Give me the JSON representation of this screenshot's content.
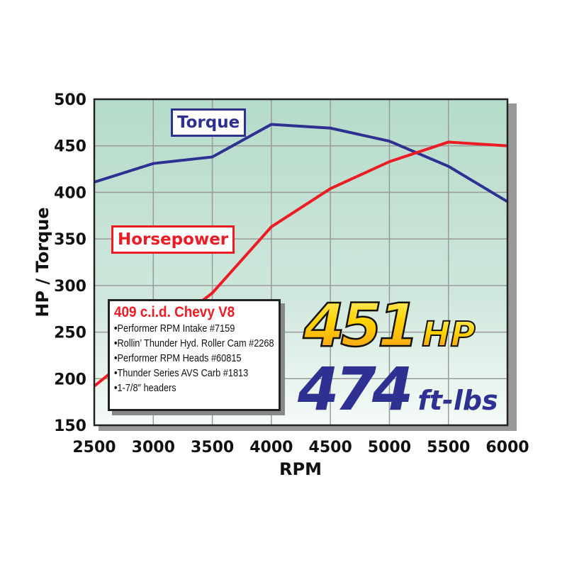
{
  "chart_data": {
    "type": "line",
    "xlabel": "RPM",
    "ylabel": "HP / Torque",
    "xlim": [
      2500,
      6000
    ],
    "ylim": [
      150,
      500
    ],
    "xticks": [
      2500,
      3000,
      3500,
      4000,
      4500,
      5000,
      5500,
      6000
    ],
    "yticks": [
      150,
      200,
      250,
      300,
      350,
      400,
      450,
      500
    ],
    "grid": true,
    "x": [
      2500,
      3000,
      3500,
      4000,
      4500,
      5000,
      5500,
      6000
    ],
    "series": [
      {
        "name": "Torque",
        "color": "#2e3192",
        "values": [
          411,
          431,
          438,
          473,
          469,
          455,
          428,
          390
        ]
      },
      {
        "name": "Horsepower",
        "color": "#ed1c24",
        "values": [
          192,
          243,
          292,
          363,
          404,
          433,
          454,
          450
        ]
      }
    ]
  },
  "spec_box": {
    "title": "409 c.i.d. Chevy V8",
    "items": [
      "Performer RPM Intake #7159",
      "Rollin’ Thunder Hyd. Roller Cam #2268",
      "Performer RPM Heads #60815",
      "Thunder Series AVS Carb #1813",
      "1-7/8″ headers"
    ]
  },
  "peak_hp": {
    "value": "451",
    "unit": "HP"
  },
  "peak_torque": {
    "value": "474",
    "unit": "ft-lbs"
  }
}
